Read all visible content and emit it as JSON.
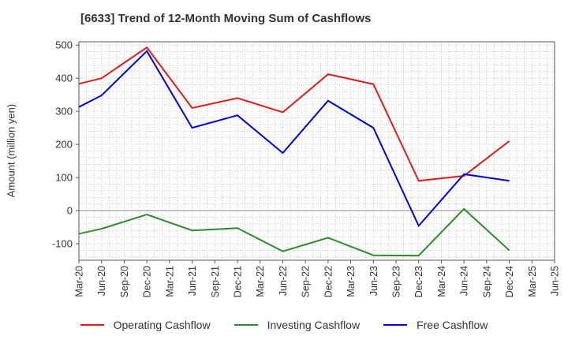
{
  "chart_data": {
    "type": "line",
    "title": "[6633]  Trend of 12-Month Moving Sum of Cashflows",
    "xlabel": "",
    "ylabel": "Amount (million yen)",
    "categories": [
      "Mar-20",
      "Jun-20",
      "Sep-20",
      "Dec-20",
      "Mar-21",
      "Jun-21",
      "Sep-21",
      "Dec-21",
      "Mar-22",
      "Jun-22",
      "Sep-22",
      "Dec-22",
      "Mar-23",
      "Jun-23",
      "Sep-23",
      "Dec-23",
      "Mar-24",
      "Jun-24",
      "Sep-24",
      "Dec-24",
      "Mar-25",
      "Jun-25"
    ],
    "ylim": [
      -150,
      510
    ],
    "yticks": [
      -100,
      0,
      100,
      200,
      300,
      400,
      500
    ],
    "grid": true,
    "legend_position": "bottom",
    "series": [
      {
        "name": "Operating Cashflow",
        "color": "#e31a1c",
        "points": [
          {
            "x": "Mar-20",
            "y": 383
          },
          {
            "x": "Jun-20",
            "y": 400
          },
          {
            "x": "Dec-20",
            "y": 493
          },
          {
            "x": "Jun-21",
            "y": 310
          },
          {
            "x": "Dec-21",
            "y": 340
          },
          {
            "x": "Jun-22",
            "y": 297
          },
          {
            "x": "Dec-22",
            "y": 412
          },
          {
            "x": "Jun-23",
            "y": 382
          },
          {
            "x": "Dec-23",
            "y": 90
          },
          {
            "x": "Jun-24",
            "y": 105
          },
          {
            "x": "Dec-24",
            "y": 210
          }
        ]
      },
      {
        "name": "Investing Cashflow",
        "color": "#2e8b2e",
        "points": [
          {
            "x": "Mar-20",
            "y": -70
          },
          {
            "x": "Jun-20",
            "y": -55
          },
          {
            "x": "Dec-20",
            "y": -12
          },
          {
            "x": "Jun-21",
            "y": -60
          },
          {
            "x": "Dec-21",
            "y": -53
          },
          {
            "x": "Jun-22",
            "y": -123
          },
          {
            "x": "Dec-22",
            "y": -82
          },
          {
            "x": "Jun-23",
            "y": -135
          },
          {
            "x": "Dec-23",
            "y": -136
          },
          {
            "x": "Jun-24",
            "y": 5
          },
          {
            "x": "Dec-24",
            "y": -120
          }
        ]
      },
      {
        "name": "Free Cashflow",
        "color": "#0000dd",
        "points": [
          {
            "x": "Mar-20",
            "y": 313
          },
          {
            "x": "Jun-20",
            "y": 348
          },
          {
            "x": "Dec-20",
            "y": 482
          },
          {
            "x": "Jun-21",
            "y": 250
          },
          {
            "x": "Dec-21",
            "y": 288
          },
          {
            "x": "Jun-22",
            "y": 174
          },
          {
            "x": "Dec-22",
            "y": 332
          },
          {
            "x": "Jun-23",
            "y": 250
          },
          {
            "x": "Dec-23",
            "y": -46
          },
          {
            "x": "Jun-24",
            "y": 110
          },
          {
            "x": "Dec-24",
            "y": 90
          }
        ]
      }
    ]
  }
}
